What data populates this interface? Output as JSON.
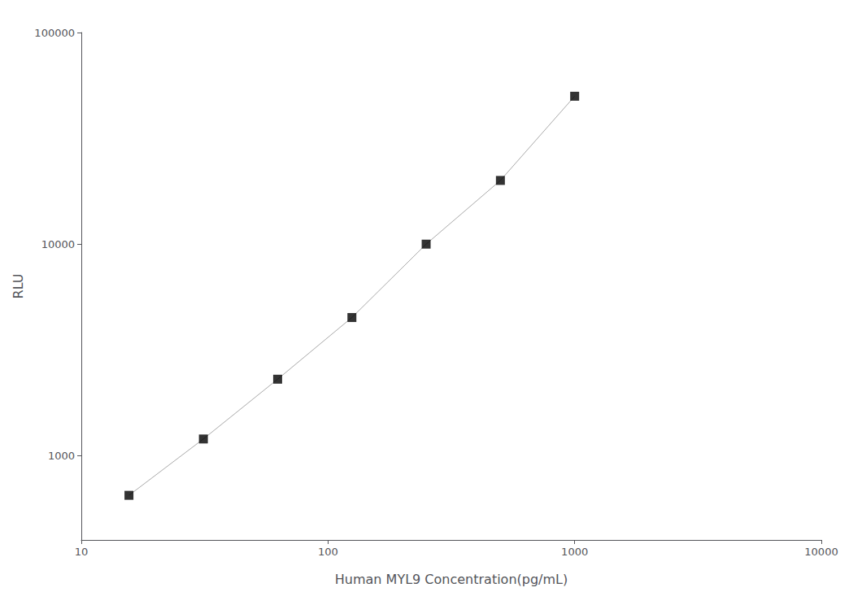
{
  "chart_data": {
    "type": "line",
    "xlabel": "Human MYL9 Concentration(pg/mL)",
    "ylabel": "RLU",
    "x": [
      15.6,
      31.25,
      62.5,
      125,
      250,
      500,
      1000
    ],
    "series": [
      {
        "type": "line",
        "color": "#aaaaaa",
        "line_style": "solid",
        "values": [
          650,
          1200,
          2300,
          4500,
          10000,
          20000,
          50000
        ]
      },
      {
        "type": "scatter",
        "color": "black",
        "marker": "square",
        "values": [
          650,
          1200,
          2300,
          4500,
          10000,
          20000,
          50000
        ]
      }
    ],
    "log": true,
    "xlim": [
      10,
      10000
    ],
    "ylim": [
      400,
      100000
    ],
    "xticks": [
      10,
      100,
      1000,
      10000
    ],
    "yticks": [
      1000,
      10000,
      100000
    ],
    "grid": false
  }
}
